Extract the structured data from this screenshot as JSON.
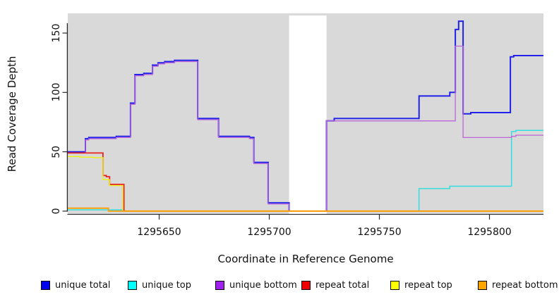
{
  "figure": {
    "xlabel": "Coordinate in Reference Genome",
    "ylabel": "Read Coverage Depth",
    "x_ticks": [
      1295650,
      1295700,
      1295750,
      1295800
    ],
    "x_tick_labels": [
      "1295650",
      "1295700",
      "1295750",
      "1295800"
    ],
    "y_ticks": [
      0,
      50,
      100,
      150
    ],
    "y_tick_labels": [
      "0",
      "50",
      "100",
      "150"
    ],
    "plot_background": "#d9d9d9",
    "gap_fill": "#ffffff",
    "axis_color": "#2a2a2a"
  },
  "legend": [
    {
      "label": "unique total",
      "color": "#0000f0"
    },
    {
      "label": "unique top",
      "color": "#00ffff"
    },
    {
      "label": "unique bottom",
      "color": "#a020f0"
    },
    {
      "label": "repeat total",
      "color": "#ee0000"
    },
    {
      "label": "repeat top",
      "color": "#ffff00"
    },
    {
      "label": "repeat bottom",
      "color": "#ffa500"
    }
  ],
  "chart_data": {
    "type": "line",
    "subtype": "step-coverage",
    "title": "",
    "xlabel": "Coordinate in Reference Genome",
    "ylabel": "Read Coverage Depth",
    "xlim": [
      1295608.5,
      1295824.5
    ],
    "ylim": [
      0,
      166
    ],
    "grid": false,
    "legend_position": "bottom",
    "gap_region": {
      "start": 1295709,
      "end": 1295726,
      "note": "white masked band, all series drop to 0"
    },
    "series": [
      {
        "name": "unique total",
        "color": "#2121ea",
        "width": 2.0,
        "points": [
          [
            1295608.5,
            50
          ],
          [
            1295616.5,
            61
          ],
          [
            1295618,
            62
          ],
          [
            1295630.5,
            63
          ],
          [
            1295637,
            91
          ],
          [
            1295639,
            115
          ],
          [
            1295643,
            116
          ],
          [
            1295647,
            123
          ],
          [
            1295649.5,
            125
          ],
          [
            1295652.5,
            126
          ],
          [
            1295657,
            127
          ],
          [
            1295667.5,
            78
          ],
          [
            1295677,
            63
          ],
          [
            1295691,
            62
          ],
          [
            1295693,
            41
          ],
          [
            1295699.5,
            7
          ],
          [
            1295709,
            0
          ],
          [
            1295726,
            76
          ],
          [
            1295729.5,
            78
          ],
          [
            1295768,
            97
          ],
          [
            1295782,
            100
          ],
          [
            1295784.5,
            153
          ],
          [
            1295786,
            160
          ],
          [
            1295788,
            82
          ],
          [
            1295791.5,
            83
          ],
          [
            1295809.5,
            130
          ],
          [
            1295811,
            131
          ]
        ]
      },
      {
        "name": "unique top",
        "color": "#35dede",
        "width": 1.5,
        "points": [
          [
            1295608.5,
            1
          ],
          [
            1295634,
            0
          ],
          [
            1295768,
            19
          ],
          [
            1295782,
            21
          ],
          [
            1295810,
            67
          ],
          [
            1295812,
            68
          ]
        ]
      },
      {
        "name": "unique bottom",
        "color": "#bc64d8",
        "width": 1.3,
        "points": [
          [
            1295608.5,
            49
          ],
          [
            1295616.5,
            60
          ],
          [
            1295618,
            61
          ],
          [
            1295630.5,
            62
          ],
          [
            1295637,
            90
          ],
          [
            1295639,
            114
          ],
          [
            1295643,
            115
          ],
          [
            1295647,
            122
          ],
          [
            1295649.5,
            124
          ],
          [
            1295652.5,
            125
          ],
          [
            1295657,
            126
          ],
          [
            1295667.5,
            77
          ],
          [
            1295677,
            62
          ],
          [
            1295691,
            61
          ],
          [
            1295693,
            40
          ],
          [
            1295699.5,
            6
          ],
          [
            1295709,
            0
          ],
          [
            1295726,
            76
          ],
          [
            1295784.5,
            139
          ],
          [
            1295788,
            62
          ],
          [
            1295810,
            63
          ],
          [
            1295812,
            64
          ]
        ]
      },
      {
        "name": "repeat total",
        "color": "#e8231c",
        "width": 1.8,
        "points": [
          [
            1295608.5,
            49
          ],
          [
            1295624.5,
            30
          ],
          [
            1295626,
            29
          ],
          [
            1295627.5,
            22.5
          ],
          [
            1295634,
            0
          ]
        ]
      },
      {
        "name": "repeat top",
        "color": "#efef10",
        "width": 1.4,
        "points": [
          [
            1295608.5,
            46
          ],
          [
            1295614,
            45.5
          ],
          [
            1295620,
            45
          ],
          [
            1295624.5,
            26.5
          ],
          [
            1295627.5,
            21.5
          ],
          [
            1295633.5,
            0
          ]
        ]
      },
      {
        "name": "repeat bottom",
        "color": "#ff9d00",
        "width": 1.8,
        "points": [
          [
            1295608.5,
            2.5
          ],
          [
            1295627,
            0
          ]
        ]
      }
    ]
  }
}
